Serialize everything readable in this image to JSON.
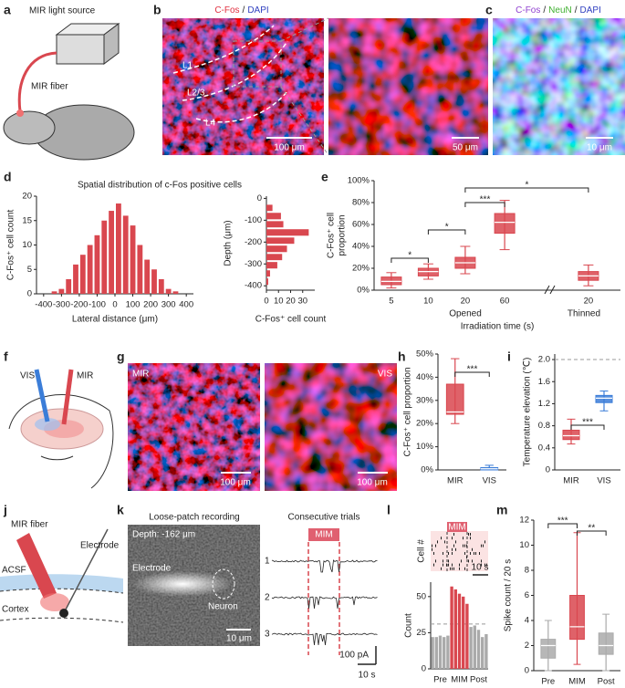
{
  "panel_labels": [
    "a",
    "b",
    "c",
    "d",
    "e",
    "f",
    "g",
    "h",
    "i",
    "j",
    "k",
    "l",
    "m"
  ],
  "a": {
    "light_source": "MIR light source",
    "fiber": "MIR fiber"
  },
  "b": {
    "title": [
      "C-Fos",
      "/",
      "DAPI"
    ],
    "layers": [
      "L1",
      "L2/3",
      "L4"
    ],
    "scale_left": "100 μm",
    "scale_right": "50 μm"
  },
  "c": {
    "title": [
      "C-Fos",
      "/",
      "NeuN",
      "/",
      "DAPI"
    ],
    "scale": "10 μm"
  },
  "d": {
    "title": "Spatial distribution of c-Fos positive cells"
  },
  "f": {
    "vis": "VIS",
    "mir": "MIR"
  },
  "g": {
    "left": "MIR",
    "right": "VIS",
    "scale_left": "100 μm",
    "scale_right": "100 μm"
  },
  "j": {
    "fiber": "MIR fiber",
    "electrode": "Electrode",
    "acsf": "ACSF",
    "cortex": "Cortex"
  },
  "k": {
    "title_left": "Loose-patch recording",
    "depth": "Depth: -162 μm",
    "electrode": "Electrode",
    "neuron": "Neuron",
    "scale_image": "10 μm",
    "title_right": "Consecutive trials",
    "stim": "MIM",
    "trials": [
      "1",
      "2",
      "3"
    ],
    "scale_y": "100 pA",
    "scale_x": "10 s"
  },
  "l": {
    "stim": "MIM",
    "ylabel": "Cell #",
    "scale_x": "10 s"
  },
  "chart_data": [
    {
      "type": "histogram",
      "xlabel": "Lateral distance (μm)",
      "ylabel": "C-Fos⁺ cell count",
      "bins": [
        -360,
        -320,
        -280,
        -240,
        -200,
        -160,
        -120,
        -80,
        -40,
        0,
        40,
        80,
        120,
        160,
        200,
        240,
        280,
        320,
        360
      ],
      "values": [
        0.5,
        1,
        3,
        6,
        8,
        10,
        12,
        15,
        17,
        18.5,
        16,
        14,
        10,
        7,
        5,
        3,
        1,
        0.5
      ],
      "color": "#d9474f",
      "xlim": [
        -440,
        440
      ],
      "xticks": [
        -400,
        -300,
        -200,
        -100,
        0,
        100,
        200,
        300,
        400
      ],
      "ylim": [
        0,
        20
      ],
      "yticks": [
        0,
        5,
        10,
        15,
        20
      ]
    },
    {
      "type": "histogram",
      "orientation": "horizontal",
      "xlabel": "C-Fos⁺ cell count",
      "ylabel": "Depth (μm)",
      "bins": [
        -25,
        -62,
        -100,
        -137,
        -175,
        -212,
        -250,
        -287,
        -325,
        -362,
        -400
      ],
      "values": [
        5,
        12,
        14,
        35,
        23,
        17,
        13,
        9,
        3,
        1.5
      ],
      "color": "#d9474f",
      "xlim": [
        0,
        40
      ],
      "xticks": [
        0,
        10,
        20,
        30
      ],
      "ylim": [
        -420,
        10
      ],
      "yticks": [
        0,
        -100,
        -200,
        -300,
        -400
      ]
    },
    {
      "type": "box",
      "ylabel": [
        "C-Fos⁺ cell",
        "proportion"
      ],
      "xlabel": "Irradiation time (s)",
      "categories": [
        "5",
        "10",
        "20",
        "60",
        "20"
      ],
      "groups": [
        "Opened",
        "Thinned"
      ],
      "boxes": [
        {
          "min": 2,
          "q1": 5,
          "median": 8,
          "q3": 12,
          "max": 16
        },
        {
          "min": 10,
          "q1": 13,
          "median": 17,
          "q3": 20,
          "max": 24
        },
        {
          "min": 15,
          "q1": 20,
          "median": 25,
          "q3": 30,
          "max": 40
        },
        {
          "min": 37,
          "q1": 52,
          "median": 62,
          "q3": 70,
          "max": 82
        },
        {
          "min": 4,
          "q1": 9,
          "median": 13,
          "q3": 17,
          "max": 23
        }
      ],
      "color": "#d9474f",
      "ylim": [
        0,
        100
      ],
      "yticks": [
        {
          "value": 0,
          "label": "0%"
        },
        {
          "value": 20,
          "label": "20%"
        },
        {
          "value": 40,
          "label": "40%"
        },
        {
          "value": 60,
          "label": "60%"
        },
        {
          "value": 80,
          "label": "80%"
        },
        {
          "value": 100,
          "label": "100%"
        }
      ],
      "annotations": [
        "*",
        "*",
        "***",
        "*"
      ]
    },
    {
      "type": "box",
      "ylabel": "C-Fos⁺ cell proportion",
      "categories": [
        "MIR",
        "VIS"
      ],
      "boxes": [
        {
          "min": 20,
          "q1": 24,
          "median": 25,
          "q3": 37,
          "max": 48
        },
        {
          "min": 0,
          "q1": 0,
          "median": 0.5,
          "q3": 1,
          "max": 2
        }
      ],
      "colors": [
        "#d9474f",
        "#3b7dd8"
      ],
      "ylim": [
        0,
        50
      ],
      "yticks": [
        {
          "value": 0,
          "label": "0%"
        },
        {
          "value": 10,
          "label": "10%"
        },
        {
          "value": 20,
          "label": "20%"
        },
        {
          "value": 30,
          "label": "30%"
        },
        {
          "value": 40,
          "label": "40%"
        },
        {
          "value": 50,
          "label": "50%"
        }
      ],
      "annotations": [
        "***"
      ]
    },
    {
      "type": "box",
      "ylabel": "Temperature elevation (℃)",
      "categories": [
        "MIR",
        "VIS"
      ],
      "boxes": [
        {
          "min": 0.47,
          "q1": 0.55,
          "median": 0.62,
          "q3": 0.72,
          "max": 0.92
        },
        {
          "min": 1.07,
          "q1": 1.22,
          "median": 1.3,
          "q3": 1.35,
          "max": 1.43
        }
      ],
      "colors": [
        "#d9474f",
        "#3b7dd8"
      ],
      "ylim": [
        0,
        2.1
      ],
      "yticks": [
        0,
        0.4,
        0.8,
        1.2,
        1.6,
        {
          "value": 2,
          "label": "2.0"
        }
      ],
      "reference_line": 2,
      "annotations": [
        "***"
      ]
    },
    {
      "type": "bar",
      "ylabel": "Count",
      "categories": [
        null,
        null,
        "Pre",
        null,
        null,
        null,
        null,
        "MIM",
        null,
        null,
        null,
        null,
        "Post",
        null,
        null
      ],
      "values": [
        22,
        22,
        23,
        22,
        23,
        57,
        55,
        52,
        50,
        45,
        29,
        30,
        27,
        22,
        24
      ],
      "colors": [
        "#aaaaaa",
        "#aaaaaa",
        "#aaaaaa",
        "#aaaaaa",
        "#aaaaaa",
        "#d9474f",
        "#d9474f",
        "#d9474f",
        "#d9474f",
        "#d9474f",
        "#aaaaaa",
        "#aaaaaa",
        "#aaaaaa",
        "#aaaaaa",
        "#aaaaaa"
      ],
      "ylim": [
        0,
        60
      ],
      "yticks": [
        0,
        25,
        50
      ],
      "reference_line": 31
    },
    {
      "type": "box",
      "ylabel": "Spike count / 20 s",
      "categories": [
        "Pre",
        "MIM",
        "Post"
      ],
      "boxes": [
        {
          "min": 0,
          "q1": 1,
          "median": 2,
          "q3": 2.5,
          "max": 4
        },
        {
          "min": 0.5,
          "q1": 2.5,
          "median": 3.5,
          "q3": 6,
          "max": 11
        },
        {
          "min": 0,
          "q1": 1.3,
          "median": 2,
          "q3": 3,
          "max": 4.5
        }
      ],
      "colors": [
        "#aaaaaa",
        "#d9474f",
        "#aaaaaa"
      ],
      "ylim": [
        0,
        12
      ],
      "yticks": [
        0,
        2,
        4,
        6,
        8,
        10,
        12
      ],
      "annotations": [
        "***",
        "**"
      ]
    }
  ]
}
